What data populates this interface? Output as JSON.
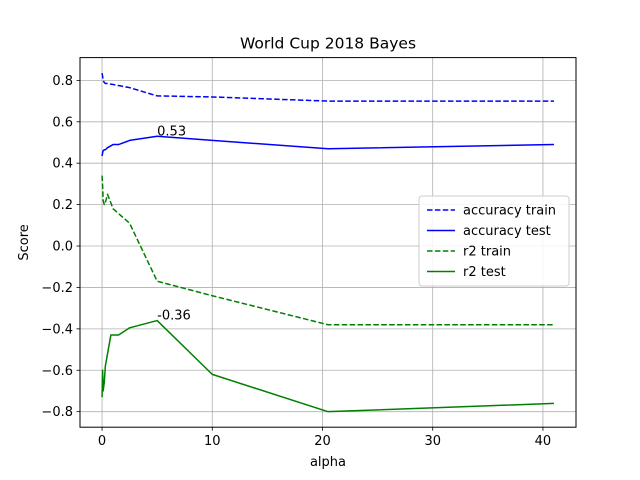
{
  "chart_data": {
    "type": "line",
    "title": "World Cup 2018 Bayes",
    "xlabel": "alpha",
    "ylabel": "Score",
    "xlim": [
      -2,
      43
    ],
    "ylim": [
      -0.875,
      0.91
    ],
    "xticks": [
      0,
      10,
      20,
      30,
      40
    ],
    "yticks": [
      -0.8,
      -0.6,
      -0.4,
      -0.2,
      0.0,
      0.2,
      0.4,
      0.6,
      0.8
    ],
    "xtick_labels": [
      "0",
      "10",
      "20",
      "30",
      "40"
    ],
    "ytick_labels": [
      "−0.8",
      "−0.6",
      "−0.4",
      "−0.2",
      "0.0",
      "0.2",
      "0.4",
      "0.6",
      "0.8"
    ],
    "grid": true,
    "legend_position": "center-right",
    "series": [
      {
        "name": "accuracy train",
        "color": "#0000ff",
        "style": "dashed",
        "x": [
          0.0,
          0.05,
          0.1,
          0.2,
          0.3,
          0.5,
          1.0,
          2.5,
          5.0,
          10.0,
          20.5,
          41.0
        ],
        "y": [
          0.835,
          0.82,
          0.8,
          0.79,
          0.785,
          0.785,
          0.78,
          0.765,
          0.725,
          0.72,
          0.7,
          0.7
        ]
      },
      {
        "name": "accuracy test",
        "color": "#0000ff",
        "style": "solid",
        "x": [
          0.0,
          0.05,
          0.1,
          0.2,
          0.3,
          0.5,
          1.0,
          1.5,
          2.5,
          5.0,
          10.0,
          20.5,
          41.0
        ],
        "y": [
          0.435,
          0.45,
          0.46,
          0.465,
          0.465,
          0.475,
          0.49,
          0.49,
          0.51,
          0.53,
          0.51,
          0.47,
          0.49
        ]
      },
      {
        "name": "r2 train",
        "color": "#008000",
        "style": "dashed",
        "x": [
          0.0,
          0.05,
          0.1,
          0.2,
          0.3,
          0.5,
          1.0,
          2.5,
          5.0,
          10.0,
          20.5,
          41.0
        ],
        "y": [
          0.34,
          0.29,
          0.22,
          0.2,
          0.21,
          0.25,
          0.18,
          0.11,
          -0.17,
          -0.24,
          -0.38,
          -0.38
        ]
      },
      {
        "name": "r2 test",
        "color": "#008000",
        "style": "solid",
        "x": [
          0.0,
          0.05,
          0.1,
          0.2,
          0.3,
          0.5,
          0.8,
          1.5,
          2.5,
          5.0,
          10.0,
          20.5,
          41.0
        ],
        "y": [
          -0.73,
          -0.6,
          -0.7,
          -0.66,
          -0.58,
          -0.52,
          -0.43,
          -0.43,
          -0.395,
          -0.36,
          -0.62,
          -0.8,
          -0.76
        ]
      }
    ],
    "annotations": [
      {
        "text": "0.53",
        "x": 5.0,
        "y": 0.53
      },
      {
        "text": "-0.36",
        "x": 5.0,
        "y": -0.36
      }
    ]
  }
}
